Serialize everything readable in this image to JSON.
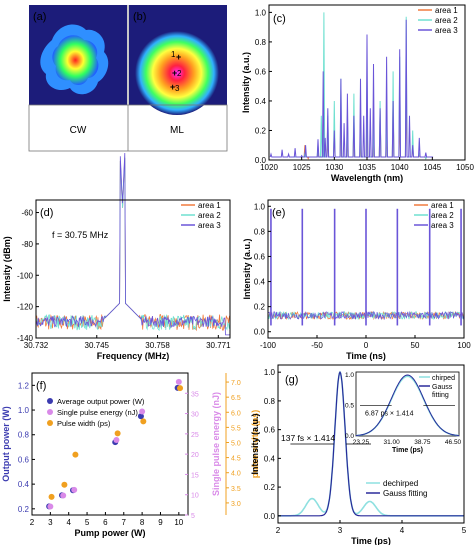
{
  "colors": {
    "area1": "#f07b3f",
    "area2": "#6fe0d0",
    "area3": "#6a55d8",
    "purple": "#8a3ad8",
    "power": "#3b3bb0",
    "energy": "#d98ae8",
    "width": "#f0a020",
    "pulse_fit": "#2a2a9a",
    "dechirped": "#8ee0e0",
    "image_bg": "#1c1c7a"
  },
  "panels": {
    "a": {
      "tag": "(a)",
      "caption": "CW"
    },
    "b": {
      "tag": "(b)",
      "caption": "ML",
      "markers": [
        "1",
        "2",
        "3"
      ]
    }
  },
  "chart_data": [
    {
      "panel": "(c)",
      "type": "line",
      "xlabel": "Wavelength (nm)",
      "ylabel": "Intensity (a.u.)",
      "xlim": [
        1020,
        1050
      ],
      "ylim": [
        0,
        1.05
      ],
      "xticks": [
        "1020",
        "1025",
        "1030",
        "1035",
        "1040",
        "1045",
        "1050"
      ],
      "yticks": [
        "0.0",
        "0.2",
        "0.4",
        "0.6",
        "0.8",
        "1.0"
      ],
      "legend": [
        "area 1",
        "area 2",
        "area 3"
      ],
      "legend_position": "top-right",
      "series": [
        {
          "name": "area 1",
          "points": [
            [
              1024,
              0.02
            ],
            [
              1025.5,
              0.1
            ],
            [
              1026,
              0.01
            ],
            [
              1027.5,
              0.05
            ],
            [
              1028.3,
              0.33
            ],
            [
              1029,
              0.15
            ],
            [
              1030,
              0.2
            ],
            [
              1031,
              0.3
            ],
            [
              1032,
              0.13
            ],
            [
              1033,
              0.25
            ],
            [
              1034,
              0.12
            ],
            [
              1035,
              0.35
            ],
            [
              1036,
              0.2
            ],
            [
              1037,
              0.33
            ],
            [
              1038,
              0.18
            ],
            [
              1039,
              0.4
            ],
            [
              1040,
              0.3
            ],
            [
              1041,
              0.5
            ],
            [
              1042,
              0.1
            ],
            [
              1043,
              0.03
            ],
            [
              1044,
              0.01
            ]
          ]
        },
        {
          "name": "area 2",
          "points": [
            [
              1024,
              0.02
            ],
            [
              1025.5,
              0.05
            ],
            [
              1026,
              0.02
            ],
            [
              1027.5,
              0.1
            ],
            [
              1028,
              0.3
            ],
            [
              1028.4,
              1.0
            ],
            [
              1029,
              0.3
            ],
            [
              1030,
              0.4
            ],
            [
              1031,
              0.55
            ],
            [
              1032,
              0.3
            ],
            [
              1033,
              0.45
            ],
            [
              1034,
              0.3
            ],
            [
              1035,
              0.55
            ],
            [
              1036,
              0.25
            ],
            [
              1037,
              0.4
            ],
            [
              1038,
              0.3
            ],
            [
              1039,
              0.6
            ],
            [
              1040,
              0.7
            ],
            [
              1041,
              0.97
            ],
            [
              1042,
              0.2
            ],
            [
              1043,
              0.05
            ],
            [
              1044,
              0.01
            ]
          ]
        },
        {
          "name": "area 3",
          "points": [
            [
              1020.3,
              0.04
            ],
            [
              1021,
              0.02
            ],
            [
              1022,
              0.07
            ],
            [
              1023,
              0.04
            ],
            [
              1024,
              0.08
            ],
            [
              1025,
              0.03
            ],
            [
              1025.6,
              0.1
            ],
            [
              1026,
              0.02
            ],
            [
              1027.5,
              0.14
            ],
            [
              1028.3,
              0.6
            ],
            [
              1028.6,
              0.15
            ],
            [
              1029,
              0.35
            ],
            [
              1030,
              0.2
            ],
            [
              1031,
              0.55
            ],
            [
              1031.5,
              0.25
            ],
            [
              1032,
              0.45
            ],
            [
              1033,
              0.3
            ],
            [
              1034,
              0.55
            ],
            [
              1034.5,
              0.3
            ],
            [
              1035,
              0.85
            ],
            [
              1035.5,
              0.35
            ],
            [
              1036,
              0.65
            ],
            [
              1037,
              0.35
            ],
            [
              1038,
              0.7
            ],
            [
              1039,
              0.4
            ],
            [
              1040,
              0.75
            ],
            [
              1041,
              0.95
            ],
            [
              1041.5,
              0.3
            ],
            [
              1042,
              0.1
            ],
            [
              1043,
              0.15
            ],
            [
              1044,
              0.05
            ],
            [
              1045,
              0.02
            ]
          ]
        }
      ]
    },
    {
      "panel": "(d)",
      "type": "line",
      "xlabel": "Frequency (MHz)",
      "ylabel": "Intensity (dBm)",
      "xlim": [
        30.732,
        30.7735
      ],
      "ylim": [
        -140,
        -52
      ],
      "xticks": [
        "30.732",
        "30.745",
        "30.758",
        "30.771"
      ],
      "yticks": [
        "-60",
        "-80",
        "-100",
        "-120",
        "-140"
      ],
      "annotation": "f = 30.75 MHz",
      "legend": [
        "area 1",
        "area 2",
        "area 3"
      ],
      "legend_position": "top-right",
      "series": [
        {
          "name": "area 1",
          "peak": [
            30.7505,
            -58
          ],
          "noise_floor": [
            -135,
            -125
          ]
        },
        {
          "name": "area 2",
          "peak": [
            30.7505,
            -58
          ],
          "noise_floor": [
            -135,
            -125
          ]
        },
        {
          "name": "area 3",
          "peak": [
            30.7505,
            -55
          ],
          "noise_floor": [
            -133,
            -126
          ]
        }
      ]
    },
    {
      "panel": "(e)",
      "type": "line",
      "xlabel": "Time (ns)",
      "ylabel": "Intensity (a.u.)",
      "xlim": [
        -100,
        100
      ],
      "ylim": [
        -0.05,
        1.05
      ],
      "xticks": [
        "-100",
        "-50",
        "0",
        "50",
        "100"
      ],
      "yticks": [
        "0.0",
        "0.2",
        "0.4",
        "0.6",
        "0.8",
        "1.0"
      ],
      "legend": [
        "area 1",
        "area 2",
        "area 3"
      ],
      "legend_position": "top-right",
      "pulse_times_ns": [
        -97,
        -65,
        -32,
        0,
        32,
        65,
        97
      ],
      "pulse_peak": 0.98,
      "baseline": [
        0.1,
        0.16
      ]
    },
    {
      "panel": "(f)",
      "type": "scatter",
      "xlabel": "Pump power (W)",
      "ylabel_left": "Output power (W)",
      "ylabel_right1": "Single pulse energy (nJ)",
      "ylabel_right2": "pulse width (ps)",
      "xlim": [
        2,
        10.5
      ],
      "xticks": [
        "2",
        "3",
        "4",
        "5",
        "6",
        "7",
        "8",
        "9",
        "10"
      ],
      "y_left": {
        "lim": [
          0.15,
          1.3
        ],
        "ticks": [
          "0.2",
          "0.4",
          "0.6",
          "0.8",
          "1.0",
          "1.2"
        ]
      },
      "y_right1": {
        "lim": [
          5,
          40
        ],
        "ticks": [
          "5",
          "10",
          "15",
          "20",
          "25",
          "30",
          "35"
        ]
      },
      "y_right2": {
        "lim": [
          2.6,
          7.3
        ],
        "ticks": [
          "3.0",
          "3.5",
          "4.0",
          "4.5",
          "5.0",
          "5.5",
          "6.0",
          "6.5",
          "7.0"
        ]
      },
      "legend": [
        "Average output power (W)",
        "Single pulse energy (nJ)",
        "Pulse width (ps)"
      ],
      "series": [
        {
          "name": "Average output power (W)",
          "axis": "left",
          "x": [
            3,
            3.7,
            4.3,
            6.6,
            8,
            10
          ],
          "y": [
            0.22,
            0.31,
            0.35,
            0.74,
            0.95,
            1.18
          ]
        },
        {
          "name": "Single pulse energy (nJ)",
          "axis": "right1",
          "x": [
            3,
            3.7,
            4.3,
            6.6,
            8,
            10
          ],
          "y": [
            7.1,
            9.8,
            11.2,
            23.5,
            30.5,
            37.8
          ]
        },
        {
          "name": "Pulse width (ps)",
          "axis": "right2",
          "x": [
            3,
            3.7,
            4.3,
            6.6,
            8,
            10
          ],
          "y": [
            3.2,
            3.6,
            4.6,
            5.3,
            5.7,
            6.8
          ]
        }
      ]
    },
    {
      "panel": "(g)",
      "type": "line",
      "xlabel": "Time (ps)",
      "ylabel": "Intensity (a.u.)",
      "xlim": [
        2,
        5
      ],
      "ylim": [
        -0.05,
        1.05
      ],
      "xticks": [
        "2",
        "3",
        "4",
        "5"
      ],
      "yticks": [
        "0.0",
        "0.2",
        "0.4",
        "0.6",
        "0.8",
        "1.0"
      ],
      "annotation": "137 fs × 1.414",
      "legend": [
        "dechirped",
        "Gauss fitting"
      ],
      "legend_position": "bottom-right",
      "series": [
        {
          "name": "dechirped",
          "center": 3.0,
          "fwhm_ps": 0.194,
          "sidelobes": [
            [
              2.55,
              0.12
            ],
            [
              3.48,
              0.1
            ]
          ]
        },
        {
          "name": "Gauss fitting",
          "center": 3.0,
          "fwhm_ps": 0.194
        }
      ],
      "inset": {
        "xlim": [
          22,
          48
        ],
        "ylim": [
          0,
          1.05
        ],
        "xticks": [
          "23.25",
          "31.00",
          "38.75",
          "46.50"
        ],
        "yticks": [
          "0.0",
          "0.5",
          "1.0"
        ],
        "xlabel": "Time (ps)",
        "annotation": "6.87 ps × 1.414",
        "legend": [
          "chirped",
          "Gauss",
          "fitting"
        ],
        "center": 35,
        "fwhm_ps": 9.71
      }
    }
  ]
}
